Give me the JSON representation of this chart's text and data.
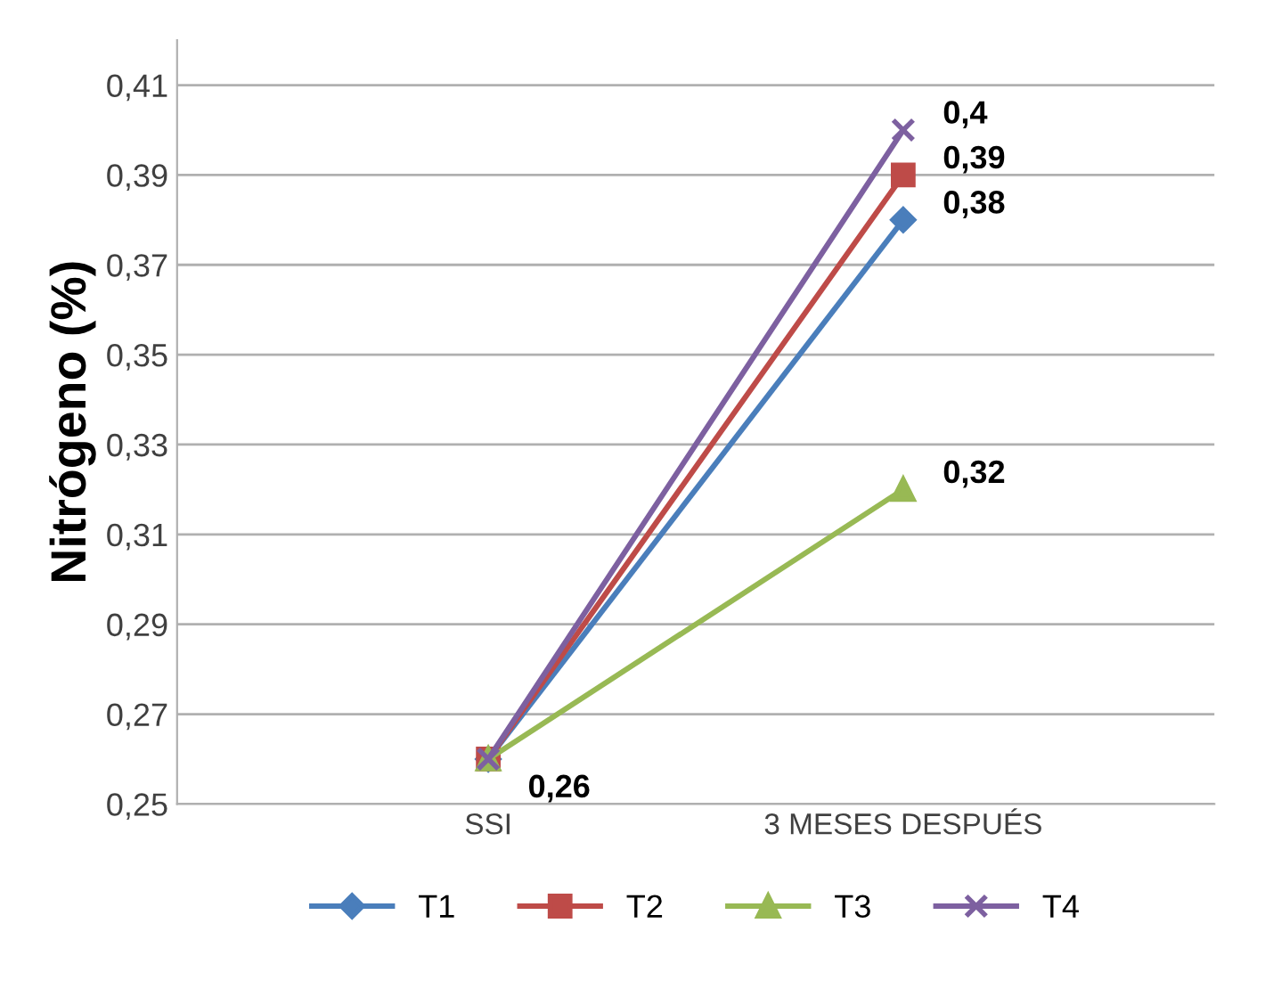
{
  "chart_data": {
    "type": "line",
    "ylabel": "Nitrógeno (%)",
    "categories": [
      "SSI",
      "3 MESES DESPUÉS"
    ],
    "series": [
      {
        "name": "T1",
        "color": "#4a7ebb",
        "marker": "diamond",
        "values": [
          0.26,
          0.38
        ],
        "value_labels": [
          "0,26",
          "0,38"
        ]
      },
      {
        "name": "T2",
        "color": "#be4b48",
        "marker": "square",
        "values": [
          0.26,
          0.39
        ],
        "value_labels": [
          null,
          "0,39"
        ]
      },
      {
        "name": "T3",
        "color": "#98b954",
        "marker": "triangle",
        "values": [
          0.26,
          0.32
        ],
        "value_labels": [
          null,
          "0,32"
        ]
      },
      {
        "name": "T4",
        "color": "#7d60a0",
        "marker": "cross",
        "values": [
          0.26,
          0.4
        ],
        "value_labels": [
          null,
          "0,4"
        ]
      }
    ],
    "ylim": [
      0.25,
      0.42
    ],
    "yticks": [
      {
        "value": 0.25,
        "label": "0,25"
      },
      {
        "value": 0.27,
        "label": "0,27"
      },
      {
        "value": 0.29,
        "label": "0,29"
      },
      {
        "value": 0.31,
        "label": "0,31"
      },
      {
        "value": 0.33,
        "label": "0,33"
      },
      {
        "value": 0.35,
        "label": "0,35"
      },
      {
        "value": 0.37,
        "label": "0,37"
      },
      {
        "value": 0.39,
        "label": "0,39"
      },
      {
        "value": 0.41,
        "label": "0,41"
      }
    ],
    "grid": "y",
    "legend": "bottom"
  }
}
